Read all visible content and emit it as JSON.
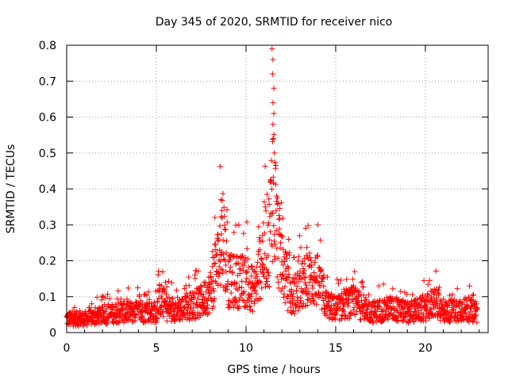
{
  "chart_data": {
    "type": "scatter",
    "title": "Day 345 of 2020, SRMTID for receiver nico",
    "xlabel": "GPS time / hours",
    "ylabel": "SRMTID / TECUs",
    "xlim": [
      0,
      23.5
    ],
    "ylim": [
      0,
      0.8
    ],
    "grid": true,
    "x_ticks": [
      0,
      5,
      10,
      15,
      20
    ],
    "x_tick_labels": [
      "0",
      "5",
      "10",
      "15",
      "20"
    ],
    "y_ticks": [
      0,
      0.1,
      0.2,
      0.3,
      0.4,
      0.5,
      0.6,
      0.7,
      0.8
    ],
    "y_tick_labels": [
      "0",
      "0.1",
      "0.2",
      "0.3",
      "0.4",
      "0.5",
      "0.6",
      "0.7",
      "0.8"
    ],
    "series": [
      {
        "name": "SRMTID",
        "marker": "+",
        "color": "#ff0000",
        "time_range_hours": [
          0,
          22.9
        ],
        "level_profile": [
          [
            0.0,
            0.04
          ],
          [
            1.0,
            0.04
          ],
          [
            2.0,
            0.05
          ],
          [
            3.0,
            0.06
          ],
          [
            4.0,
            0.06
          ],
          [
            5.0,
            0.06
          ],
          [
            5.2,
            0.1
          ],
          [
            5.6,
            0.07
          ],
          [
            6.5,
            0.07
          ],
          [
            7.5,
            0.09
          ],
          [
            8.0,
            0.12
          ],
          [
            8.5,
            0.22
          ],
          [
            8.7,
            0.3
          ],
          [
            9.0,
            0.15
          ],
          [
            10.0,
            0.15
          ],
          [
            10.5,
            0.12
          ],
          [
            11.0,
            0.25
          ],
          [
            11.3,
            0.28
          ],
          [
            11.5,
            0.45
          ],
          [
            11.7,
            0.3
          ],
          [
            12.0,
            0.2
          ],
          [
            12.5,
            0.1
          ],
          [
            13.5,
            0.16
          ],
          [
            14.0,
            0.15
          ],
          [
            14.5,
            0.08
          ],
          [
            15.0,
            0.07
          ],
          [
            16.0,
            0.09
          ],
          [
            17.0,
            0.06
          ],
          [
            18.0,
            0.07
          ],
          [
            19.0,
            0.06
          ],
          [
            20.0,
            0.07
          ],
          [
            20.5,
            0.09
          ],
          [
            21.0,
            0.06
          ],
          [
            22.0,
            0.07
          ],
          [
            22.9,
            0.06
          ]
        ],
        "spikes": [
          {
            "x": 11.45,
            "y": 0.79
          },
          {
            "x": 11.5,
            "y": 0.76
          },
          {
            "x": 11.48,
            "y": 0.72
          },
          {
            "x": 11.55,
            "y": 0.68
          },
          {
            "x": 11.5,
            "y": 0.64
          },
          {
            "x": 11.55,
            "y": 0.61
          },
          {
            "x": 11.5,
            "y": 0.58
          },
          {
            "x": 11.52,
            "y": 0.54
          },
          {
            "x": 11.58,
            "y": 0.5
          },
          {
            "x": 8.6,
            "y": 0.37
          },
          {
            "x": 8.65,
            "y": 0.34
          }
        ]
      }
    ]
  }
}
